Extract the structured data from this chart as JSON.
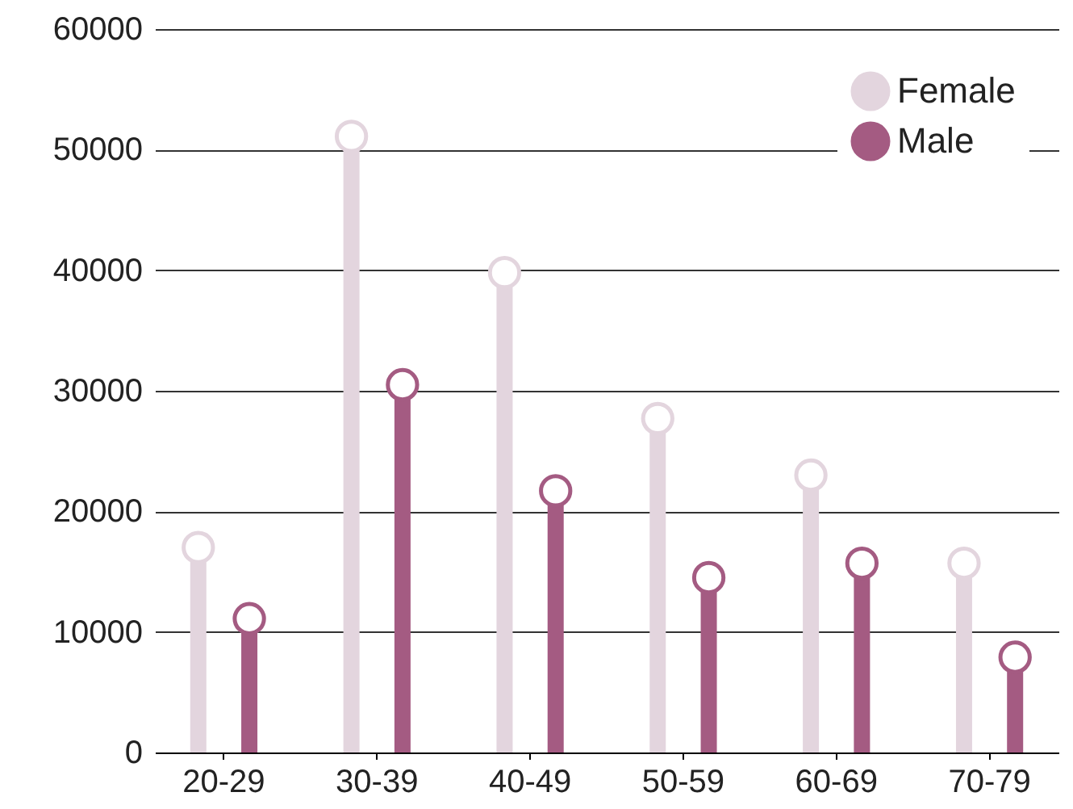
{
  "chart_data": {
    "type": "lollipop",
    "categories": [
      "20-29",
      "30-39",
      "40-49",
      "50-59",
      "60-69",
      "70-79"
    ],
    "series": [
      {
        "name": "Female",
        "color": "#e3d5de",
        "values": [
          17000,
          51100,
          39800,
          27700,
          23000,
          15700
        ]
      },
      {
        "name": "Male",
        "color": "#a45b82",
        "values": [
          11100,
          30500,
          21700,
          14500,
          15700,
          7900
        ]
      }
    ],
    "ylim": [
      0,
      60000
    ],
    "yticks": [
      0,
      10000,
      20000,
      30000,
      40000,
      50000,
      60000
    ],
    "grid": "y",
    "legend": "top right",
    "marker": "circle"
  }
}
